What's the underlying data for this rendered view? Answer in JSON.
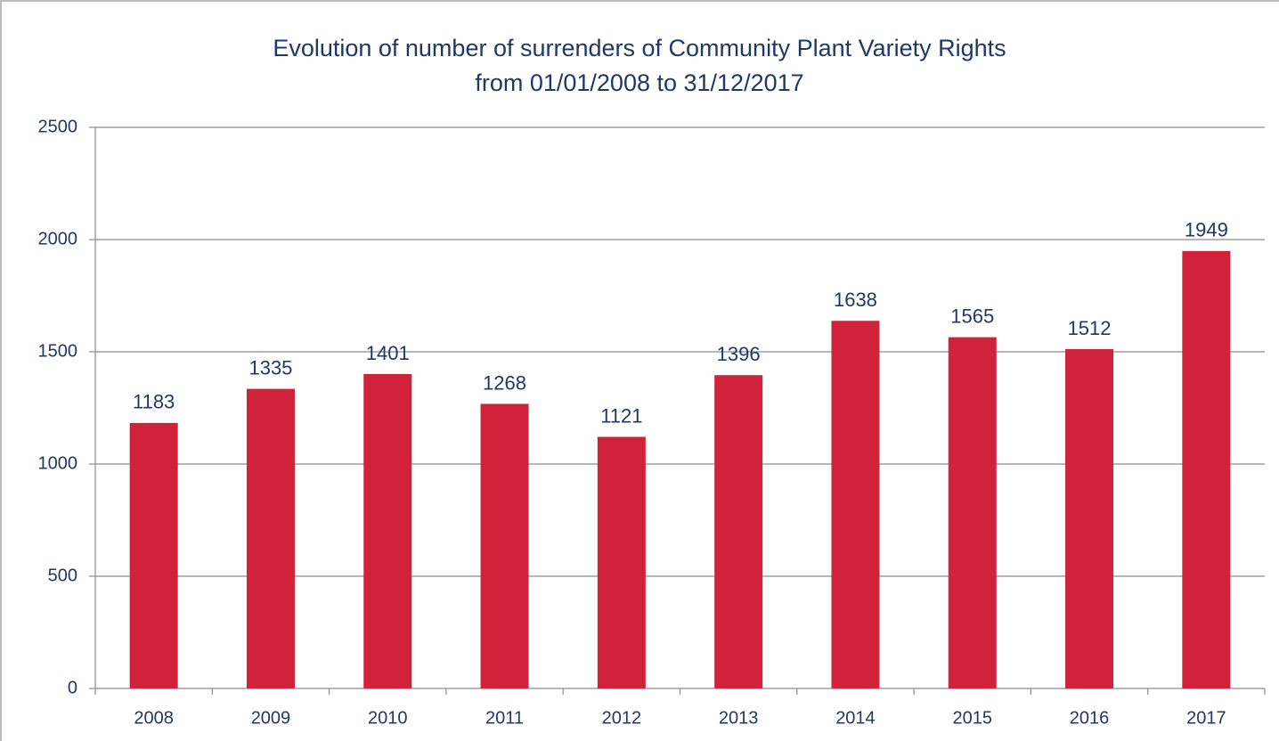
{
  "chart_data": {
    "type": "bar",
    "title": "Evolution of number of surrenders of Community Plant Variety Rights",
    "subtitle": "from 01/01/2008  to 31/12/2017",
    "categories": [
      "2008",
      "2009",
      "2010",
      "2011",
      "2012",
      "2013",
      "2014",
      "2015",
      "2016",
      "2017"
    ],
    "values": [
      1183,
      1335,
      1401,
      1268,
      1121,
      1396,
      1638,
      1565,
      1512,
      1949
    ],
    "color": "#d0223a",
    "ylim": [
      0,
      2500
    ],
    "yticks": [
      0,
      500,
      1000,
      1500,
      2000,
      2500
    ],
    "grid": true
  }
}
